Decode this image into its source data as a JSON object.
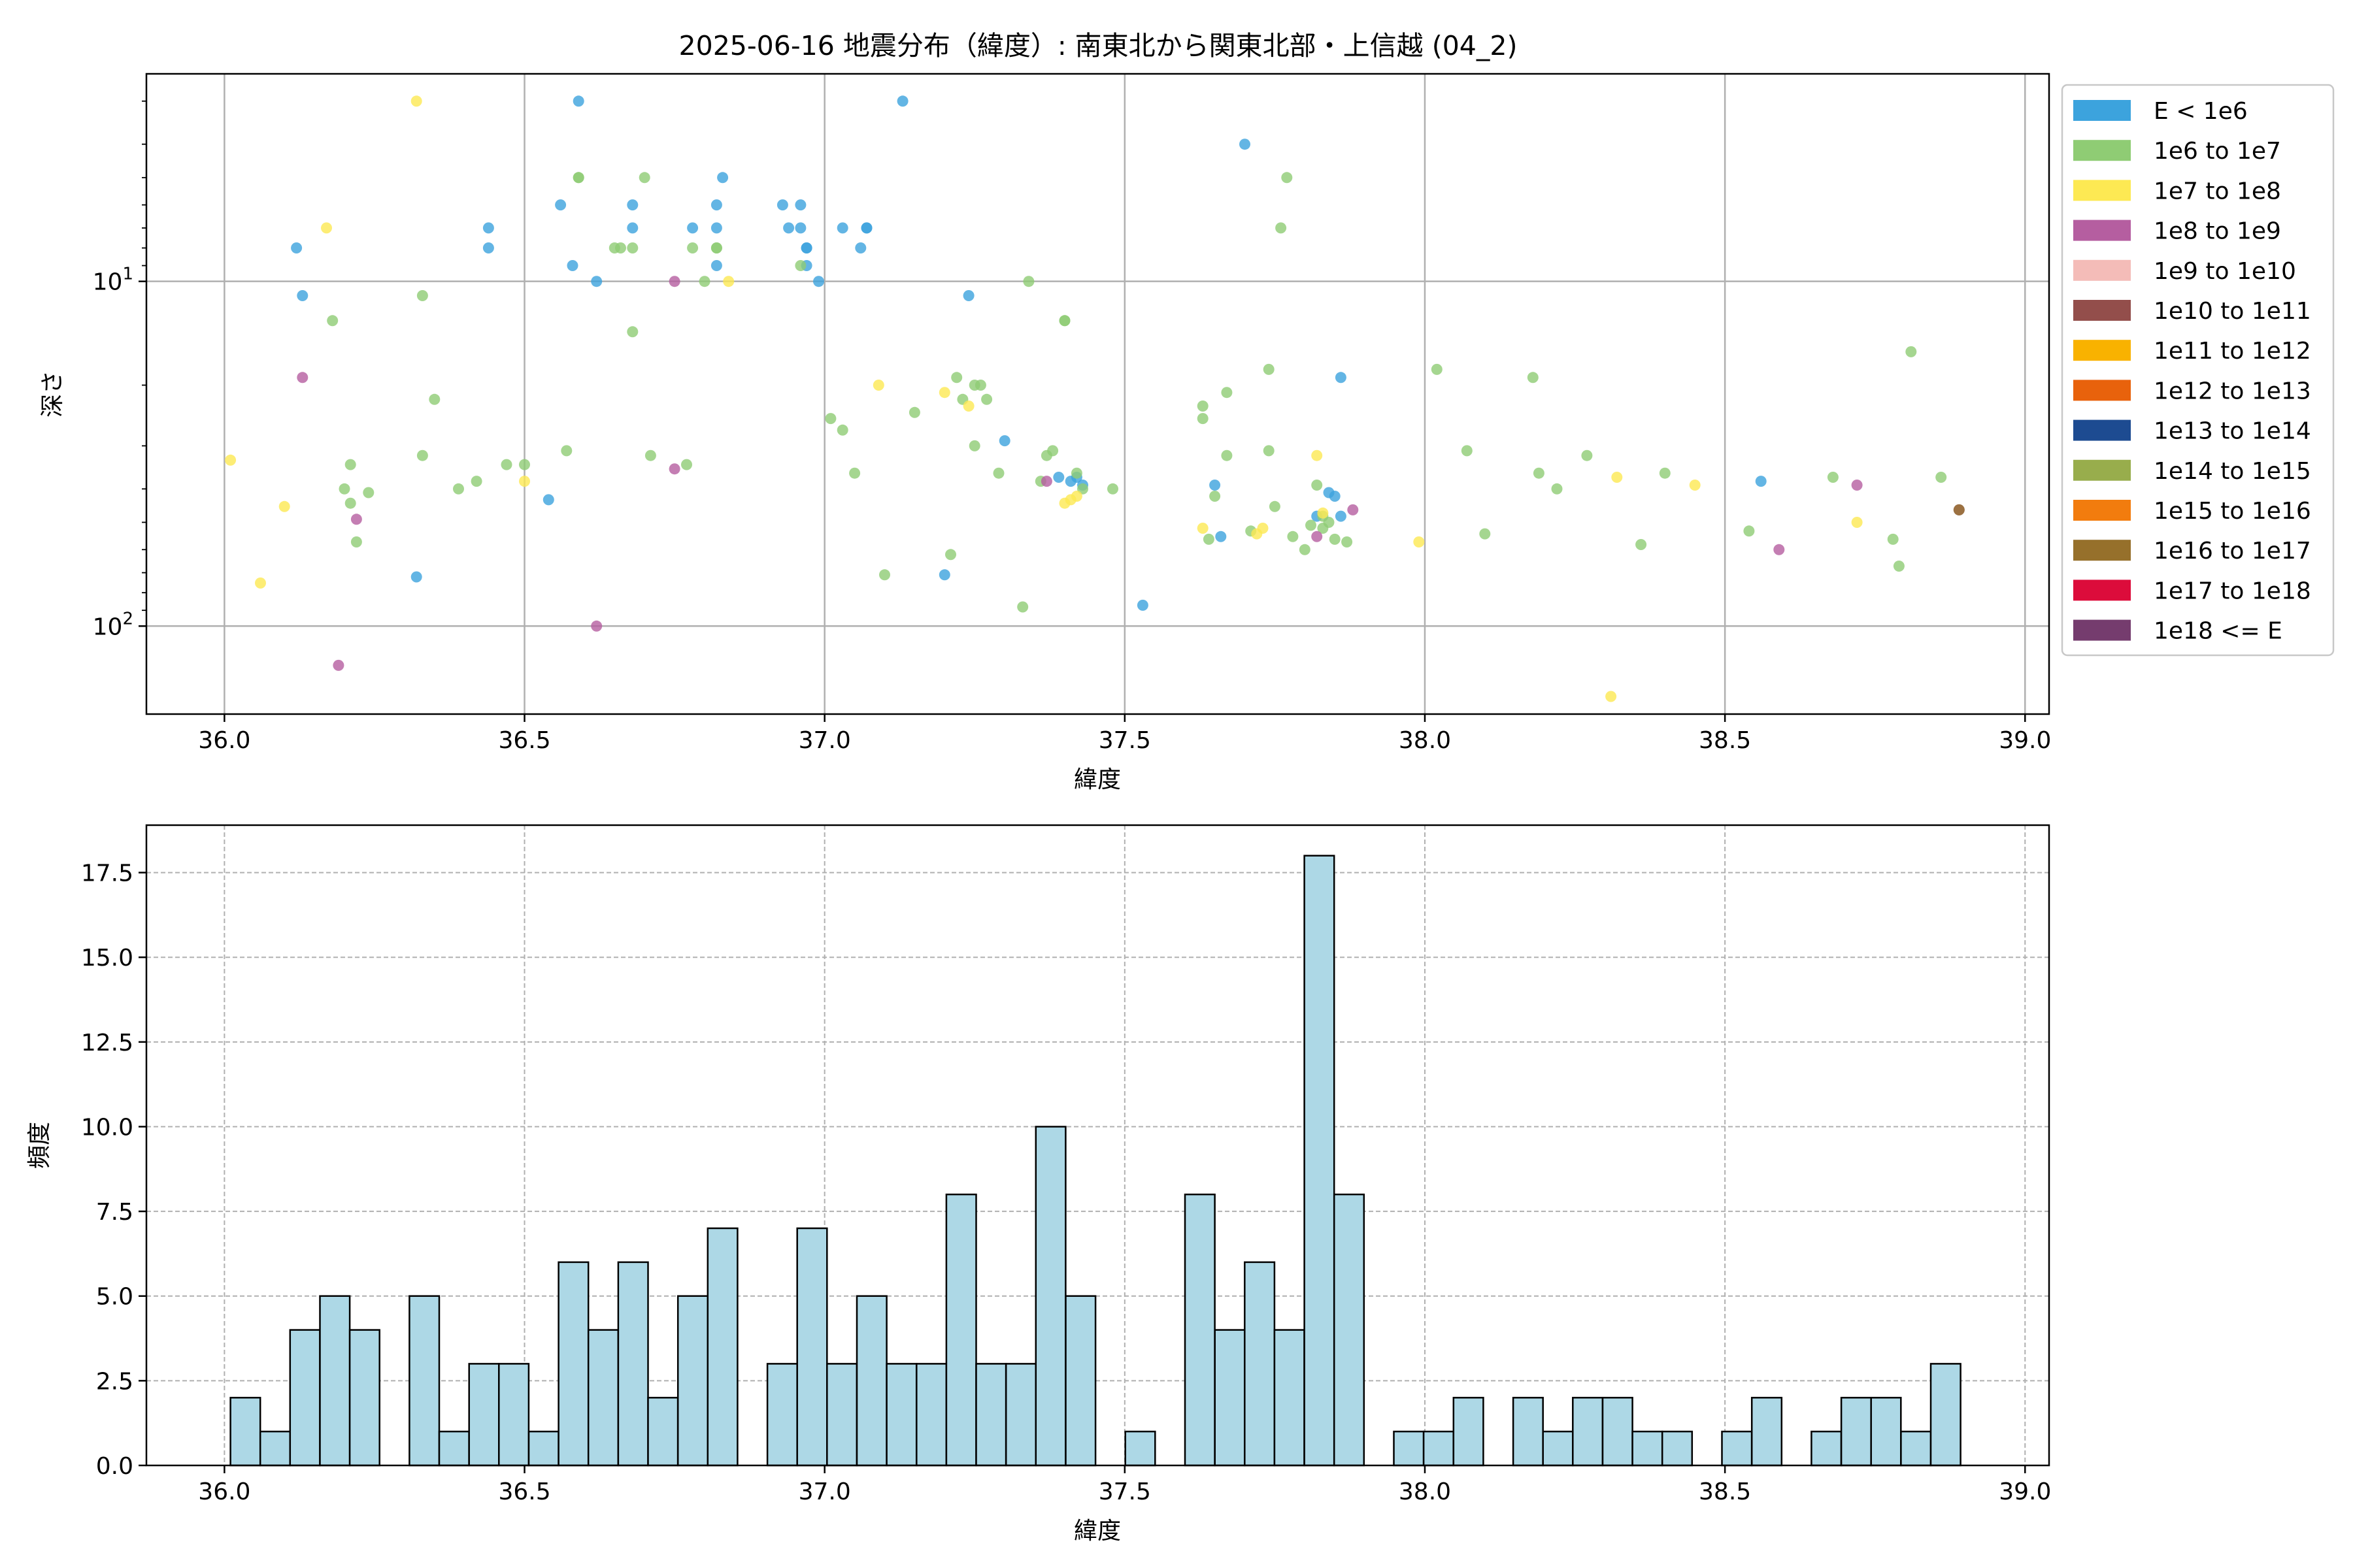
{
  "chart_data": [
    {
      "type": "scatter",
      "title": "2025-06-16 地震分布（緯度）: 南東北から関東北部・上信越 (04_2)",
      "xlabel": "緯度",
      "ylabel": "深さ",
      "xlim": [
        35.87,
        39.04
      ],
      "ylim_log": [
        180,
        2.5
      ],
      "y_scale": "log",
      "y_inverted": true,
      "grid": true,
      "legend_position": "right outside",
      "x_ticks": [
        "36.0",
        "36.5",
        "37.0",
        "37.5",
        "38.0",
        "38.5",
        "39.0"
      ],
      "y_ticks": [
        "10^1",
        "10^2"
      ],
      "legend": [
        {
          "label": "E < 1e6",
          "color": "#3ca3dd"
        },
        {
          "label": "1e6 to 1e7",
          "color": "#8fcc74"
        },
        {
          "label": "1e7 to 1e8",
          "color": "#fde953"
        },
        {
          "label": "1e8 to 1e9",
          "color": "#b55ea0"
        },
        {
          "label": "1e9 to 1e10",
          "color": "#f4bcb8"
        },
        {
          "label": "1e10 to 1e11",
          "color": "#934e4b"
        },
        {
          "label": "1e11 to 1e12",
          "color": "#f9b200"
        },
        {
          "label": "1e12 to 1e13",
          "color": "#e8620c"
        },
        {
          "label": "1e13 to 1e14",
          "color": "#1d4b91"
        },
        {
          "label": "1e14 to 1e15",
          "color": "#98ad4c"
        },
        {
          "label": "1e15 to 1e16",
          "color": "#f27c0e"
        },
        {
          "label": "1e16 to 1e17",
          "color": "#96702b"
        },
        {
          "label": "1e17 to 1e18",
          "color": "#dc0c3b"
        },
        {
          "label": "1e18 <= E",
          "color": "#753c6e"
        }
      ],
      "series": [
        {
          "name": "E < 1e6",
          "color": "#3ca3dd",
          "points": [
            [
              36.12,
              8
            ],
            [
              36.13,
              11
            ],
            [
              36.32,
              72
            ],
            [
              36.44,
              7
            ],
            [
              36.44,
              8
            ],
            [
              36.54,
              43
            ],
            [
              36.56,
              6
            ],
            [
              36.58,
              9
            ],
            [
              36.59,
              3
            ],
            [
              36.62,
              10
            ],
            [
              36.68,
              6
            ],
            [
              36.68,
              7
            ],
            [
              36.78,
              7
            ],
            [
              36.82,
              6
            ],
            [
              36.82,
              7
            ],
            [
              36.82,
              9
            ],
            [
              36.83,
              5
            ],
            [
              36.93,
              6
            ],
            [
              36.94,
              7
            ],
            [
              36.96,
              6
            ],
            [
              36.96,
              7
            ],
            [
              36.97,
              8
            ],
            [
              36.97,
              9
            ],
            [
              36.97,
              8
            ],
            [
              36.99,
              10
            ],
            [
              37.03,
              7
            ],
            [
              37.06,
              8
            ],
            [
              37.07,
              7
            ],
            [
              37.07,
              7
            ],
            [
              37.13,
              3
            ],
            [
              37.2,
              71
            ],
            [
              37.24,
              11
            ],
            [
              37.3,
              29
            ],
            [
              37.39,
              37
            ],
            [
              37.41,
              38
            ],
            [
              37.42,
              37
            ],
            [
              37.43,
              39
            ],
            [
              37.53,
              87
            ],
            [
              37.65,
              39
            ],
            [
              37.66,
              55
            ],
            [
              37.7,
              4
            ],
            [
              37.82,
              48
            ],
            [
              37.84,
              41
            ],
            [
              37.85,
              42
            ],
            [
              37.86,
              48
            ],
            [
              37.86,
              19
            ],
            [
              38.56,
              38
            ]
          ]
        },
        {
          "name": "1e6 to 1e7",
          "color": "#8fcc74",
          "points": [
            [
              36.18,
              13
            ],
            [
              36.2,
              40
            ],
            [
              36.21,
              34
            ],
            [
              36.21,
              44
            ],
            [
              36.22,
              57
            ],
            [
              36.24,
              41
            ],
            [
              36.33,
              11
            ],
            [
              36.33,
              32
            ],
            [
              36.35,
              22
            ],
            [
              36.39,
              40
            ],
            [
              36.42,
              38
            ],
            [
              36.47,
              34
            ],
            [
              36.5,
              34
            ],
            [
              36.57,
              31
            ],
            [
              36.59,
              5
            ],
            [
              36.59,
              5
            ],
            [
              36.65,
              8
            ],
            [
              36.66,
              8
            ],
            [
              36.68,
              8
            ],
            [
              36.68,
              14
            ],
            [
              36.7,
              5
            ],
            [
              36.71,
              32
            ],
            [
              36.77,
              34
            ],
            [
              36.78,
              8
            ],
            [
              36.8,
              10
            ],
            [
              36.82,
              8
            ],
            [
              36.82,
              8
            ],
            [
              36.96,
              9
            ],
            [
              37.01,
              25
            ],
            [
              37.03,
              27
            ],
            [
              37.05,
              36
            ],
            [
              37.1,
              71
            ],
            [
              37.15,
              24
            ],
            [
              37.21,
              62
            ],
            [
              37.22,
              19
            ],
            [
              37.23,
              22
            ],
            [
              37.25,
              20
            ],
            [
              37.26,
              20
            ],
            [
              37.27,
              22
            ],
            [
              37.25,
              30
            ],
            [
              37.29,
              36
            ],
            [
              37.34,
              10
            ],
            [
              37.36,
              38
            ],
            [
              37.37,
              32
            ],
            [
              37.38,
              31
            ],
            [
              37.4,
              13
            ],
            [
              37.4,
              13
            ],
            [
              37.42,
              36
            ],
            [
              37.43,
              40
            ],
            [
              37.48,
              40
            ],
            [
              37.33,
              88
            ],
            [
              37.63,
              23
            ],
            [
              37.63,
              25
            ],
            [
              37.64,
              56
            ],
            [
              37.65,
              42
            ],
            [
              37.67,
              21
            ],
            [
              37.67,
              32
            ],
            [
              37.71,
              53
            ],
            [
              37.74,
              18
            ],
            [
              37.74,
              31
            ],
            [
              37.75,
              45
            ],
            [
              37.76,
              7
            ],
            [
              37.77,
              5
            ],
            [
              37.78,
              55
            ],
            [
              37.8,
              60
            ],
            [
              37.81,
              51
            ],
            [
              37.82,
              39
            ],
            [
              37.83,
              48
            ],
            [
              37.83,
              52
            ],
            [
              37.84,
              50
            ],
            [
              37.85,
              56
            ],
            [
              37.87,
              57
            ],
            [
              38.02,
              18
            ],
            [
              38.07,
              31
            ],
            [
              38.1,
              54
            ],
            [
              38.18,
              19
            ],
            [
              38.19,
              36
            ],
            [
              38.22,
              40
            ],
            [
              38.27,
              32
            ],
            [
              38.36,
              58
            ],
            [
              38.4,
              36
            ],
            [
              38.54,
              53
            ],
            [
              38.68,
              37
            ],
            [
              38.78,
              56
            ],
            [
              38.79,
              67
            ],
            [
              38.81,
              16
            ],
            [
              38.86,
              37
            ],
            [
              38.89,
              46
            ]
          ]
        },
        {
          "name": "1e7 to 1e8",
          "color": "#fde953",
          "points": [
            [
              36.01,
              33
            ],
            [
              36.06,
              75
            ],
            [
              36.1,
              45
            ],
            [
              36.17,
              7
            ],
            [
              36.32,
              3
            ],
            [
              36.5,
              38
            ],
            [
              36.84,
              10
            ],
            [
              37.09,
              20
            ],
            [
              37.2,
              21
            ],
            [
              37.24,
              23
            ],
            [
              37.4,
              44
            ],
            [
              37.41,
              43
            ],
            [
              37.42,
              42
            ],
            [
              37.63,
              52
            ],
            [
              37.72,
              54
            ],
            [
              37.73,
              52
            ],
            [
              37.82,
              32
            ],
            [
              37.83,
              47
            ],
            [
              37.99,
              57
            ],
            [
              38.31,
              160
            ],
            [
              38.32,
              37
            ],
            [
              38.45,
              39
            ],
            [
              38.72,
              50
            ]
          ]
        },
        {
          "name": "1e8 to 1e9",
          "color": "#b55ea0",
          "points": [
            [
              36.13,
              19
            ],
            [
              36.19,
              130
            ],
            [
              36.22,
              49
            ],
            [
              36.62,
              100
            ],
            [
              36.75,
              10
            ],
            [
              36.75,
              35
            ],
            [
              37.37,
              38
            ],
            [
              37.82,
              55
            ],
            [
              37.88,
              46
            ],
            [
              38.59,
              60
            ],
            [
              38.72,
              39
            ],
            [
              38.89,
              46
            ]
          ]
        },
        {
          "name": "1e16 to 1e17",
          "color": "#96702b",
          "points": [
            [
              38.89,
              46
            ]
          ]
        }
      ]
    },
    {
      "type": "bar",
      "xlabel": "緯度",
      "ylabel": "頻度",
      "xlim": [
        35.87,
        39.04
      ],
      "ylim": [
        0,
        18.9
      ],
      "grid": true,
      "bar_color": "#add8e6",
      "edge_color": "#000000",
      "x_ticks": [
        "36.0",
        "36.5",
        "37.0",
        "37.5",
        "38.0",
        "38.5",
        "39.0"
      ],
      "y_ticks": [
        "0.0",
        "2.5",
        "5.0",
        "7.5",
        "10.0",
        "12.5",
        "15.0",
        "17.5"
      ],
      "bin_start": 36.01,
      "bin_width": 0.0497,
      "values": [
        2,
        1,
        4,
        5,
        4,
        0,
        5,
        1,
        3,
        3,
        1,
        6,
        4,
        6,
        2,
        5,
        7,
        0,
        3,
        7,
        3,
        5,
        3,
        3,
        8,
        3,
        3,
        10,
        5,
        0,
        1,
        0,
        8,
        4,
        6,
        4,
        18,
        8,
        0,
        1,
        1,
        2,
        0,
        2,
        1,
        2,
        2,
        1,
        1,
        0,
        1,
        2,
        0,
        1,
        2,
        2,
        1,
        3
      ]
    }
  ]
}
